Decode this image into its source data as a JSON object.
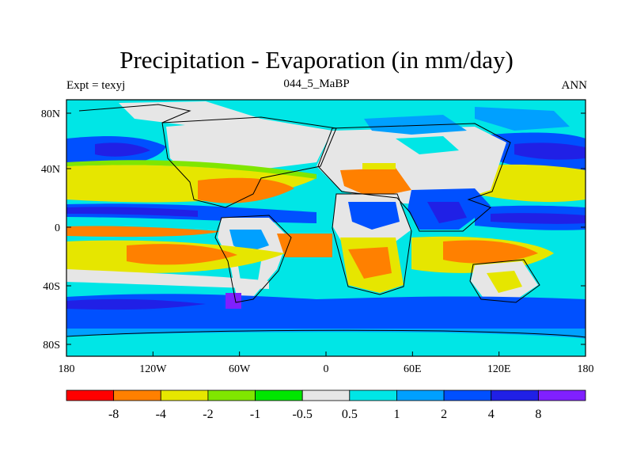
{
  "title": "Precipitation - Evaporation (in mm/day)",
  "subtitle_left": "Expt = texyj",
  "subtitle_center": "044_5_MaBP",
  "subtitle_right": "ANN",
  "axes": {
    "x_ticks": [
      "180",
      "120W",
      "60W",
      "0",
      "60E",
      "120E",
      "180"
    ],
    "y_ticks": [
      "80N",
      "40N",
      "0",
      "40S",
      "80S"
    ]
  },
  "colorbar": {
    "labels": [
      "-8",
      "-4",
      "-2",
      "-1",
      "-0.5",
      "0.5",
      "1",
      "2",
      "4",
      "8"
    ],
    "colors": [
      "#ff0000",
      "#ff8000",
      "#e6e600",
      "#80e600",
      "#00e600",
      "#e6e6e6",
      "#00e6e6",
      "#00a0ff",
      "#0050ff",
      "#2020e6",
      "#8020ff"
    ]
  },
  "colors": {
    "ocean_default": "#00e6e6",
    "land_boundary": "#000000"
  }
}
